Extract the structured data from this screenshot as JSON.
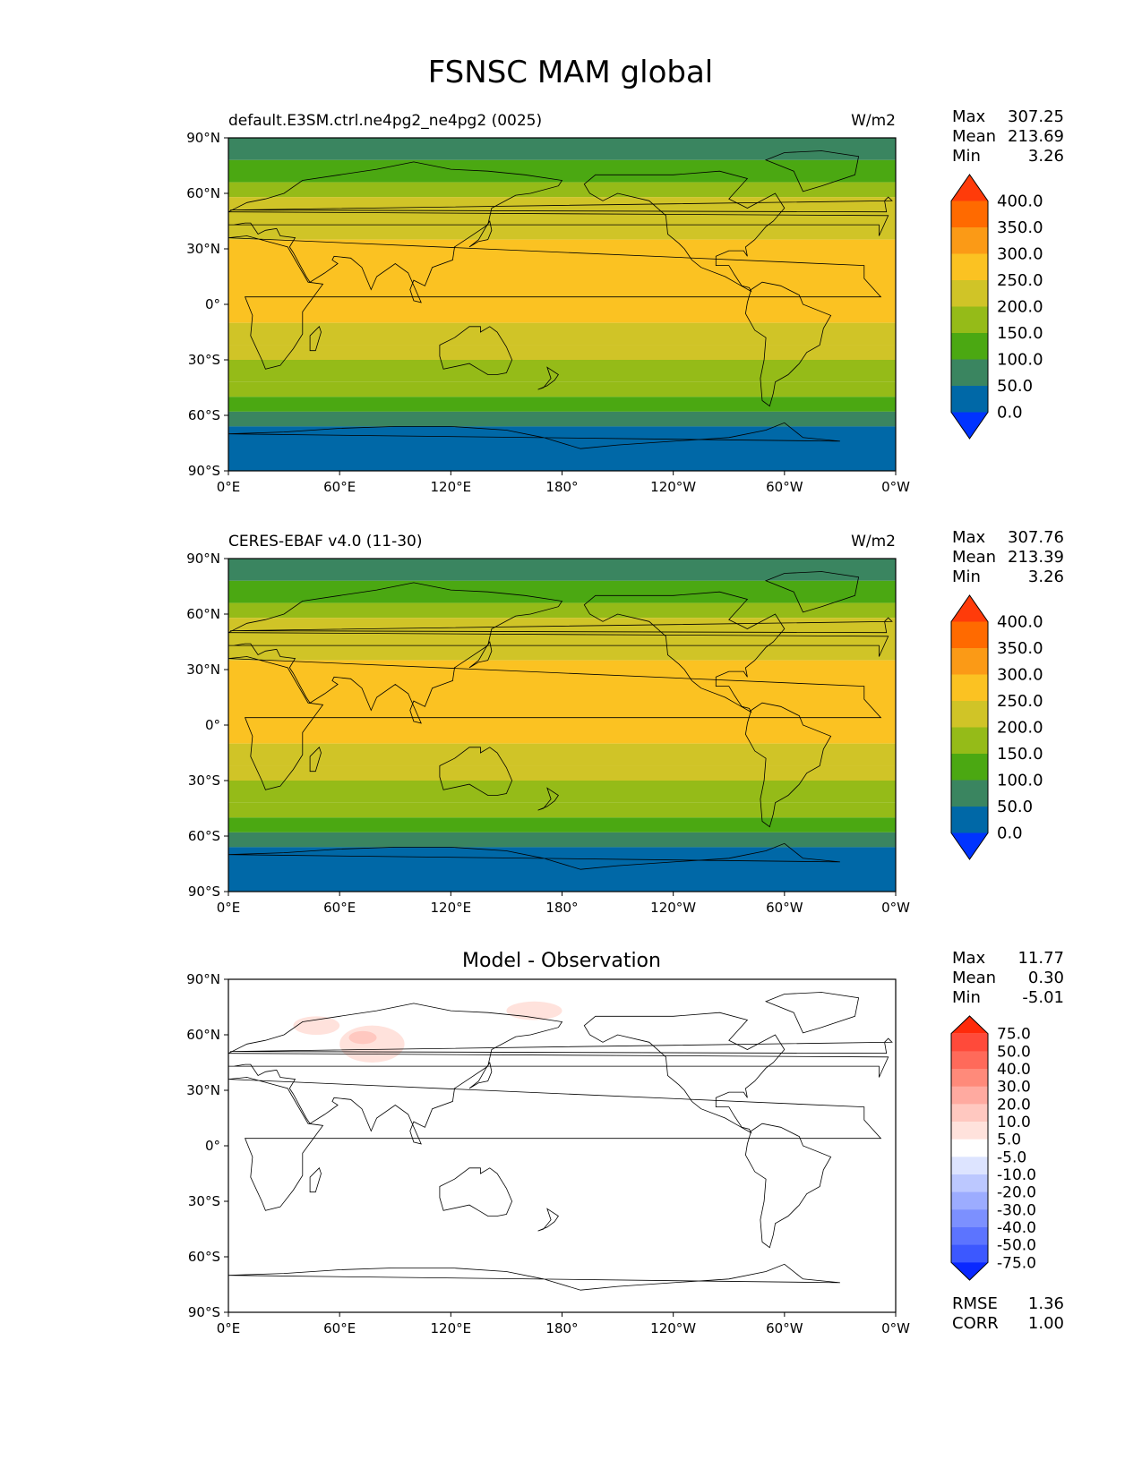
{
  "figure": {
    "title": "FSNSC MAM global"
  },
  "axes": {
    "lon_ticks": [
      "0°E",
      "60°E",
      "120°E",
      "180°",
      "120°W",
      "60°W",
      "0°W"
    ],
    "lat_ticks": [
      "90°N",
      "60°N",
      "30°N",
      "0°",
      "30°S",
      "60°S",
      "90°S"
    ],
    "lon_range": [
      0,
      360
    ],
    "lat_range": [
      -90,
      90
    ]
  },
  "panels": [
    {
      "id": "test",
      "title_left": "default.E3SM.ctrl.ne4pg2_ne4pg2 (0025)",
      "title_right": "W/m2",
      "title_center": "",
      "stats": [
        {
          "label": "Max",
          "value": "307.25"
        },
        {
          "label": "Mean",
          "value": "213.69"
        },
        {
          "label": "Min",
          "value": "3.26"
        }
      ],
      "colorbar": {
        "levels": [
          "400.0",
          "350.0",
          "300.0",
          "250.0",
          "200.0",
          "150.0",
          "100.0",
          "50.0",
          "0.0"
        ],
        "colors": [
          "#ff3b0a",
          "#ff6a00",
          "#fb9a16",
          "#fbc222",
          "#d0c427",
          "#95bb18",
          "#4ba812",
          "#3a8560",
          "#0068a7",
          "#0033ff"
        ]
      }
    },
    {
      "id": "ref",
      "title_left": "CERES-EBAF v4.0 (11-30)",
      "title_right": "W/m2",
      "title_center": "",
      "stats": [
        {
          "label": "Max",
          "value": "307.76"
        },
        {
          "label": "Mean",
          "value": "213.39"
        },
        {
          "label": "Min",
          "value": "3.26"
        }
      ],
      "colorbar": {
        "levels": [
          "400.0",
          "350.0",
          "300.0",
          "250.0",
          "200.0",
          "150.0",
          "100.0",
          "50.0",
          "0.0"
        ],
        "colors": [
          "#ff3b0a",
          "#ff6a00",
          "#fb9a16",
          "#fbc222",
          "#d0c427",
          "#95bb18",
          "#4ba812",
          "#3a8560",
          "#0068a7",
          "#0033ff"
        ]
      }
    },
    {
      "id": "diff",
      "title_left": "",
      "title_right": "",
      "title_center": "Model - Observation",
      "stats": [
        {
          "label": "Max",
          "value": "11.77"
        },
        {
          "label": "Mean",
          "value": "0.30"
        },
        {
          "label": "Min",
          "value": "-5.01"
        }
      ],
      "bottom_stats": [
        {
          "label": "RMSE",
          "value": "1.36"
        },
        {
          "label": "CORR",
          "value": "1.00"
        }
      ],
      "colorbar": {
        "levels": [
          "75.0",
          "50.0",
          "40.0",
          "30.0",
          "20.0",
          "10.0",
          "5.0",
          "-5.0",
          "-10.0",
          "-20.0",
          "-30.0",
          "-40.0",
          "-50.0",
          "-75.0"
        ],
        "colors": [
          "#ff2a0a",
          "#ff4a3a",
          "#ff6a5a",
          "#ff8a7a",
          "#ffaaa0",
          "#ffc8c0",
          "#ffe2dc",
          "#ffffff",
          "#dde4ff",
          "#bcc8ff",
          "#9cacff",
          "#7c90ff",
          "#5c74ff",
          "#3c58ff",
          "#0a28ff"
        ]
      }
    }
  ],
  "chart_data": [
    {
      "type": "heatmap",
      "title": "default.E3SM.ctrl.ne4pg2_ne4pg2 (0025)",
      "units": "W/m2",
      "lat_bands": [
        {
          "lat": [
            78,
            90
          ],
          "level": "50-100"
        },
        {
          "lat": [
            66,
            78
          ],
          "level": "100-150"
        },
        {
          "lat": [
            58,
            66
          ],
          "level": "150-200"
        },
        {
          "lat": [
            35,
            58
          ],
          "level": "200-250"
        },
        {
          "lat": [
            -10,
            35
          ],
          "level": "250-300"
        },
        {
          "lat": [
            -22,
            -10
          ],
          "level": "200-250"
        },
        {
          "lat": [
            -30,
            -22
          ],
          "level": "200-250"
        },
        {
          "lat": [
            -42,
            -30
          ],
          "level": "150-200"
        },
        {
          "lat": [
            -50,
            -42
          ],
          "level": "150-200"
        },
        {
          "lat": [
            -58,
            -50
          ],
          "level": "100-150"
        },
        {
          "lat": [
            -66,
            -58
          ],
          "level": "50-100"
        },
        {
          "lat": [
            -90,
            -66
          ],
          "level": "0-50"
        }
      ],
      "stats": {
        "max": 307.25,
        "mean": 213.69,
        "min": 3.26
      }
    },
    {
      "type": "heatmap",
      "title": "CERES-EBAF v4.0 (11-30)",
      "units": "W/m2",
      "lat_bands": [
        {
          "lat": [
            78,
            90
          ],
          "level": "50-100"
        },
        {
          "lat": [
            66,
            78
          ],
          "level": "100-150"
        },
        {
          "lat": [
            58,
            66
          ],
          "level": "150-200"
        },
        {
          "lat": [
            35,
            58
          ],
          "level": "200-250"
        },
        {
          "lat": [
            -10,
            35
          ],
          "level": "250-300"
        },
        {
          "lat": [
            -22,
            -10
          ],
          "level": "200-250"
        },
        {
          "lat": [
            -30,
            -22
          ],
          "level": "200-250"
        },
        {
          "lat": [
            -42,
            -30
          ],
          "level": "150-200"
        },
        {
          "lat": [
            -50,
            -42
          ],
          "level": "150-200"
        },
        {
          "lat": [
            -58,
            -50
          ],
          "level": "100-150"
        },
        {
          "lat": [
            -66,
            -58
          ],
          "level": "50-100"
        },
        {
          "lat": [
            -90,
            -66
          ],
          "level": "0-50"
        }
      ],
      "stats": {
        "max": 307.76,
        "mean": 213.39,
        "min": 3.26
      }
    },
    {
      "type": "heatmap",
      "title": "Model - Observation",
      "units": "W/m2",
      "anomalies": [
        {
          "lon": [
            35,
            60
          ],
          "lat": [
            60,
            70
          ],
          "level": "5-10"
        },
        {
          "lon": [
            60,
            95
          ],
          "lat": [
            45,
            65
          ],
          "level": "5-10"
        },
        {
          "lon": [
            65,
            80
          ],
          "lat": [
            55,
            62
          ],
          "level": "10-20"
        },
        {
          "lon": [
            150,
            180
          ],
          "lat": [
            68,
            78
          ],
          "level": "5-10"
        }
      ],
      "stats": {
        "max": 11.77,
        "mean": 0.3,
        "min": -5.01,
        "rmse": 1.36,
        "corr": 1.0
      }
    }
  ]
}
